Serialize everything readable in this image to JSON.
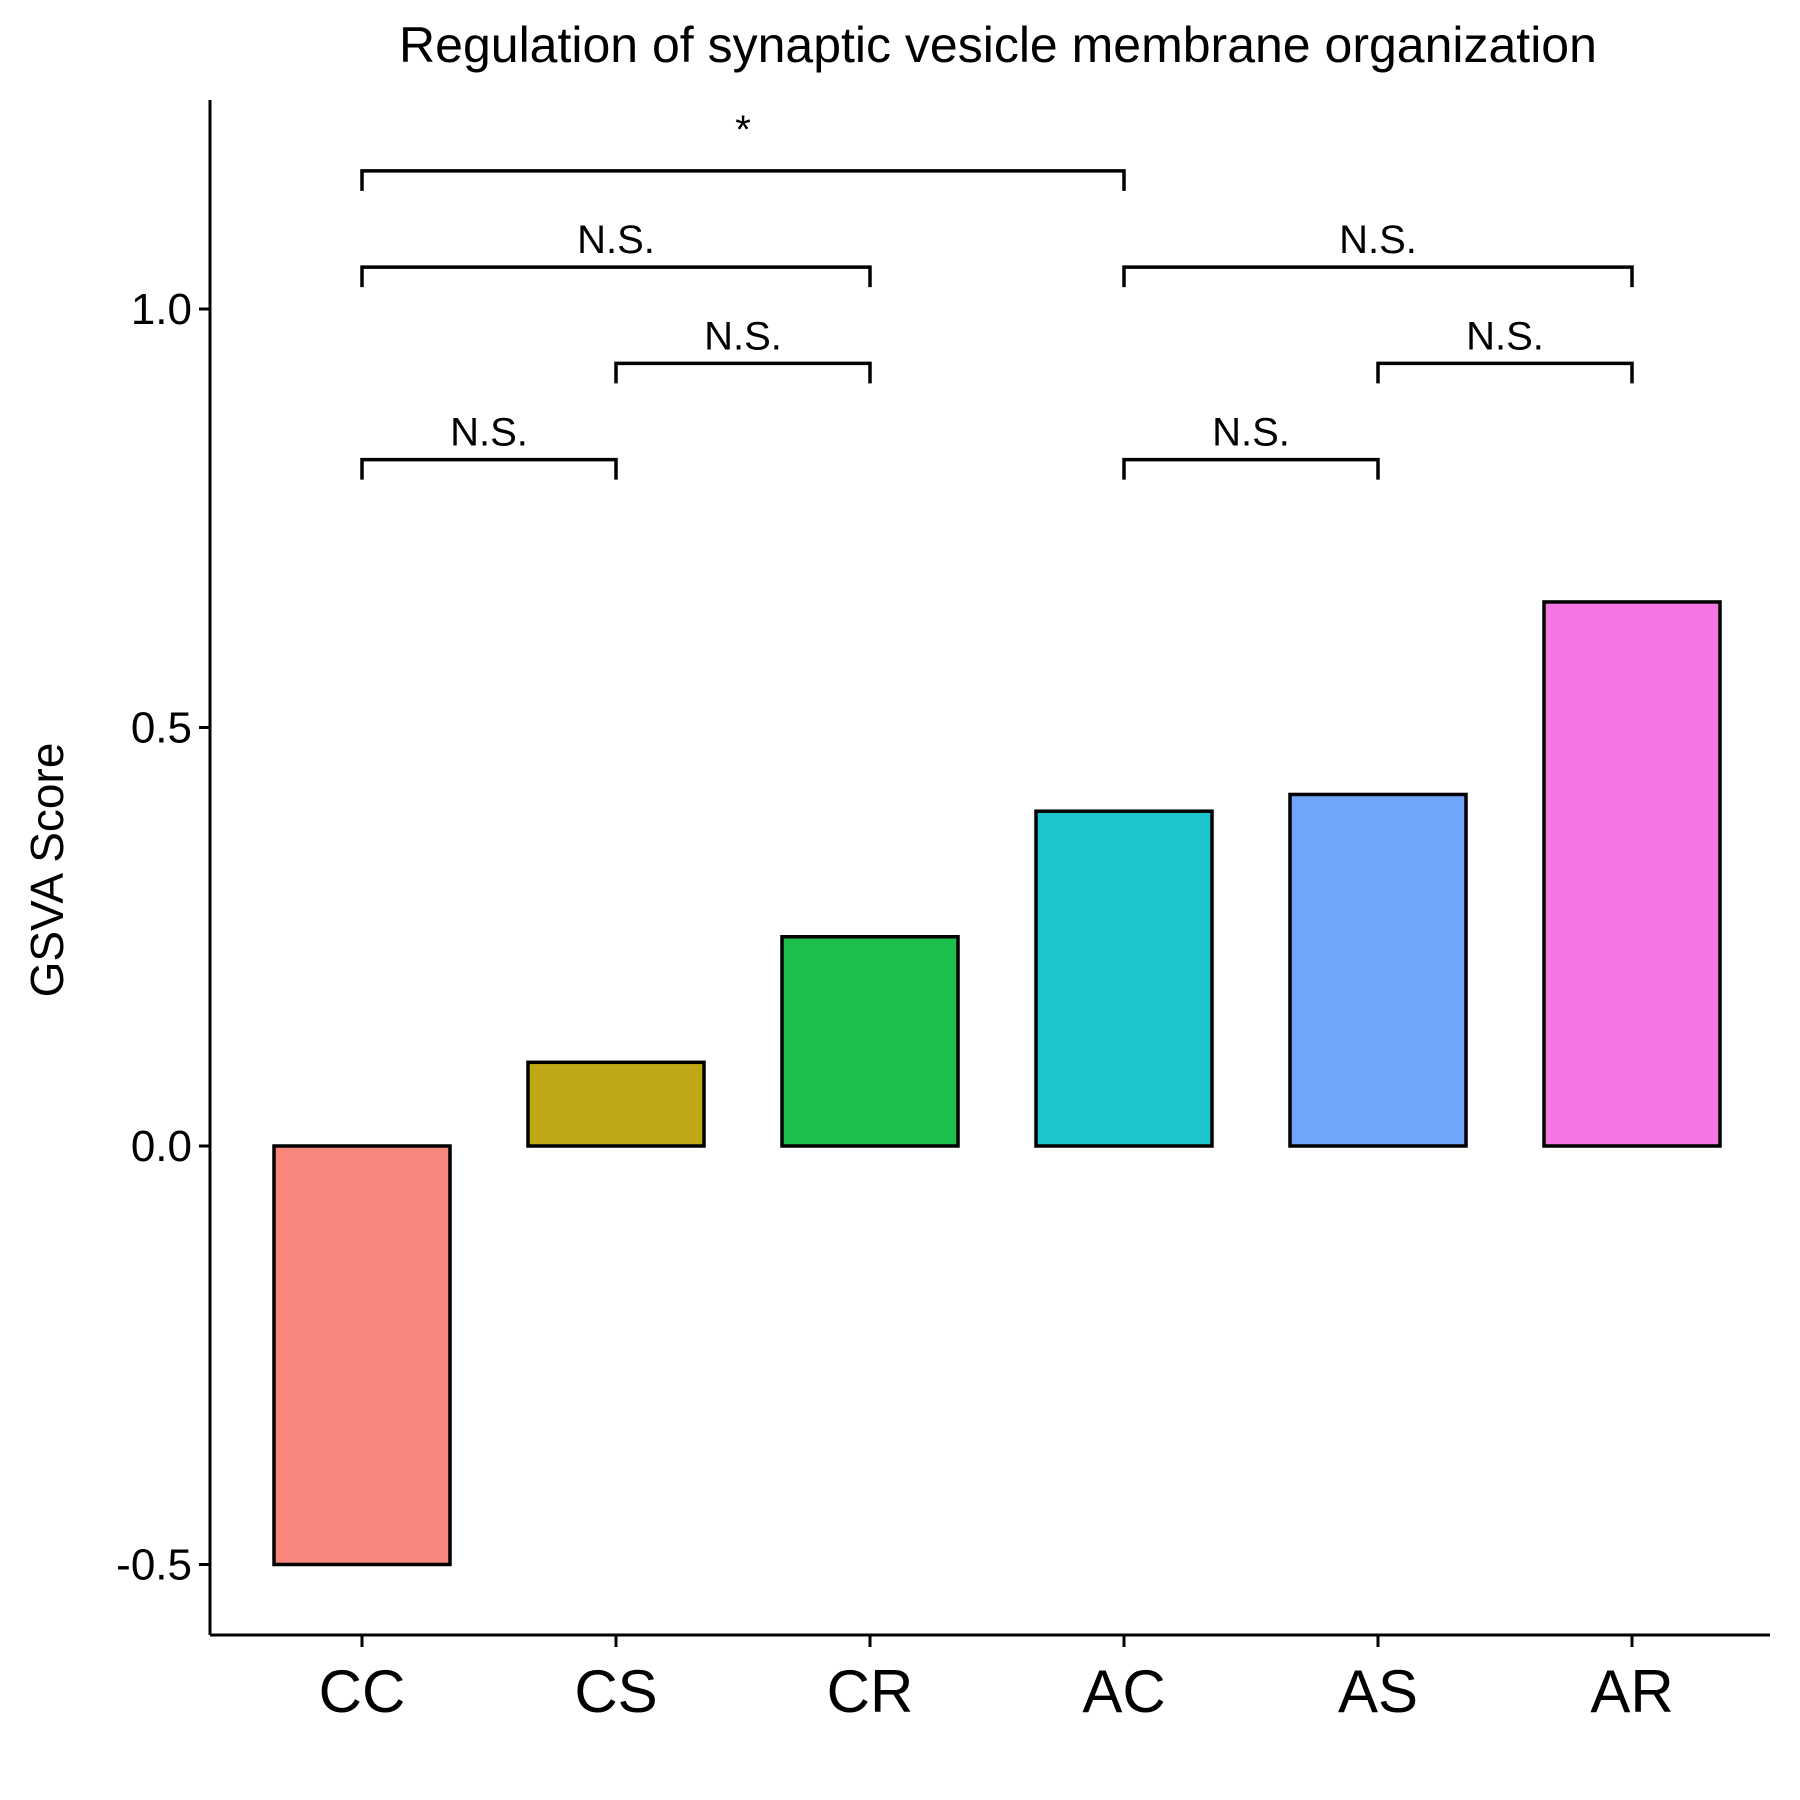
{
  "chart_data": {
    "type": "bar",
    "title": "Regulation of synaptic vesicle membrane organization",
    "xlabel": "",
    "ylabel": "GSVA Score",
    "categories": [
      "CC",
      "CS",
      "CR",
      "AC",
      "AS",
      "AR"
    ],
    "values": [
      -0.5,
      0.1,
      0.25,
      0.4,
      0.42,
      0.65
    ],
    "colors": [
      "#F8867C",
      "#BEA818",
      "#1DBF4C",
      "#1CC5CC",
      "#71A5FC",
      "#F575E3"
    ],
    "ylim": [
      -0.58,
      1.25
    ],
    "yticks": [
      -0.5,
      0.0,
      0.5,
      1.0
    ],
    "ytick_labels": [
      "-0.5",
      "0.0",
      "0.5",
      "1.0"
    ],
    "grid": false,
    "legend": "none",
    "annotations": [
      {
        "from": "CC",
        "to": "CS",
        "label": "N.S.",
        "y": 0.82
      },
      {
        "from": "CS",
        "to": "CR",
        "label": "N.S.",
        "y": 0.935
      },
      {
        "from": "CC",
        "to": "CR",
        "label": "N.S.",
        "y": 1.05
      },
      {
        "from": "CC",
        "to": "AC",
        "label": "*",
        "y": 1.165
      },
      {
        "from": "AC",
        "to": "AS",
        "label": "N.S.",
        "y": 0.82
      },
      {
        "from": "AS",
        "to": "AR",
        "label": "N.S.",
        "y": 0.935
      },
      {
        "from": "AC",
        "to": "AR",
        "label": "N.S.",
        "y": 1.05
      }
    ]
  }
}
